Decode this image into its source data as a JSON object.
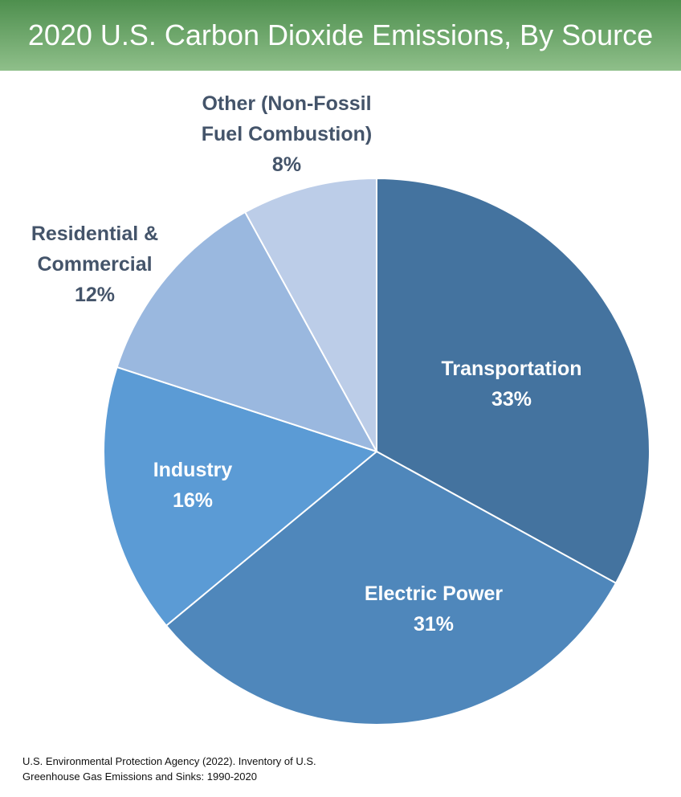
{
  "chart_data": {
    "type": "pie",
    "title": "2020 U.S. Carbon Dioxide Emissions, By Source",
    "categories": [
      "Transportation",
      "Electric Power",
      "Industry",
      "Residential & Commercial",
      "Other (Non-Fossil Fuel Combustion)"
    ],
    "values": [
      33,
      31,
      16,
      12,
      8
    ],
    "value_labels": [
      "33%",
      "31%",
      "16%",
      "12%",
      "8%"
    ],
    "colors": [
      "#44739f",
      "#4f87bb",
      "#5b9bd5",
      "#9ab8df",
      "#bccde8"
    ],
    "source": "U.S. Environmental Protection Agency (2022). Inventory of U.S. Greenhouse Gas Emissions and Sinks: 1990-2020"
  }
}
